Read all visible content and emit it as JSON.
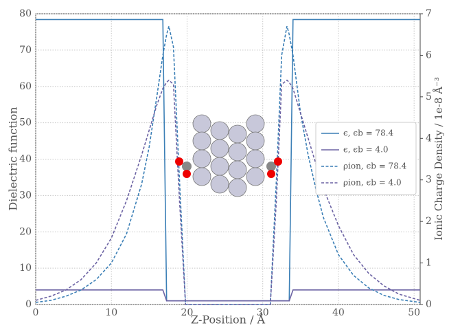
{
  "chart_data": {
    "type": "line",
    "xlabel": "Z-Position / Å",
    "ylabel": "Dielectric function",
    "y2label": "Ionic Charge Density / 1e-8 Å⁻³",
    "x": [
      0,
      2,
      4,
      6,
      8,
      10,
      12,
      14,
      15,
      16,
      16.8,
      17.3,
      17.6,
      18.2,
      19,
      19.8,
      20,
      25,
      30,
      31,
      31.8,
      32.5,
      33.2,
      33.5,
      34,
      35,
      36,
      37,
      38,
      40,
      42,
      44,
      46,
      48,
      50.8
    ],
    "series": [
      {
        "name": "ϵ, ϵb = 78.4",
        "color": "#3b7fb6",
        "linestyle": "solid",
        "values": [
          78.4,
          78.4,
          78.4,
          78.4,
          78.4,
          78.4,
          78.4,
          78.4,
          78.4,
          78.4,
          78.4,
          1,
          1,
          1,
          1,
          1,
          1,
          1,
          1,
          1,
          1,
          1,
          1,
          1,
          78.4,
          78.4,
          78.4,
          78.4,
          78.4,
          78.4,
          78.4,
          78.4,
          78.4,
          78.4,
          78.4
        ]
      },
      {
        "name": "ϵ, ϵb = 4.0",
        "color": "#6b62a3",
        "linestyle": "solid",
        "values": [
          4,
          4,
          4,
          4,
          4,
          4,
          4,
          4,
          4,
          4,
          4,
          1,
          1,
          1,
          1,
          1,
          1,
          1,
          1,
          1,
          1,
          1,
          1,
          1,
          4,
          4,
          4,
          4,
          4,
          4,
          4,
          4,
          4,
          4,
          4
        ]
      },
      {
        "name": "ρion, ϵb = 78.4",
        "color": "#3b7fb6",
        "linestyle": "dashed",
        "axis": "y2",
        "values": [
          0.05,
          0.1,
          0.2,
          0.35,
          0.6,
          1.0,
          1.7,
          2.9,
          3.8,
          5.0,
          6.0,
          6.5,
          6.7,
          6.2,
          3.0,
          0,
          0,
          0,
          0,
          0,
          3.0,
          6.0,
          6.7,
          6.5,
          6.0,
          4.6,
          3.6,
          2.8,
          2.1,
          1.2,
          0.7,
          0.4,
          0.22,
          0.12,
          0.05
        ]
      },
      {
        "name": "ρion, ϵb = 4.0",
        "color": "#6b62a3",
        "linestyle": "dashed",
        "axis": "y2",
        "values": [
          0.1,
          0.2,
          0.35,
          0.6,
          1.0,
          1.6,
          2.5,
          3.6,
          4.2,
          4.8,
          5.2,
          5.35,
          5.4,
          5.3,
          2.5,
          0,
          0,
          0,
          0,
          0,
          2.5,
          5.3,
          5.4,
          5.35,
          5.2,
          4.6,
          4.0,
          3.4,
          2.8,
          1.9,
          1.2,
          0.75,
          0.45,
          0.25,
          0.1
        ]
      }
    ],
    "xlim": [
      0,
      50.8
    ],
    "xticks": [
      0,
      10,
      20,
      30,
      40,
      50
    ],
    "ylim": [
      0,
      80
    ],
    "yticks": [
      0,
      10,
      20,
      30,
      40,
      50,
      60,
      70,
      80
    ],
    "y2lim": [
      0,
      7
    ],
    "y2ticks": [
      0,
      1,
      2,
      3,
      4,
      5,
      6,
      7
    ],
    "grid": true,
    "legend": "center right"
  }
}
